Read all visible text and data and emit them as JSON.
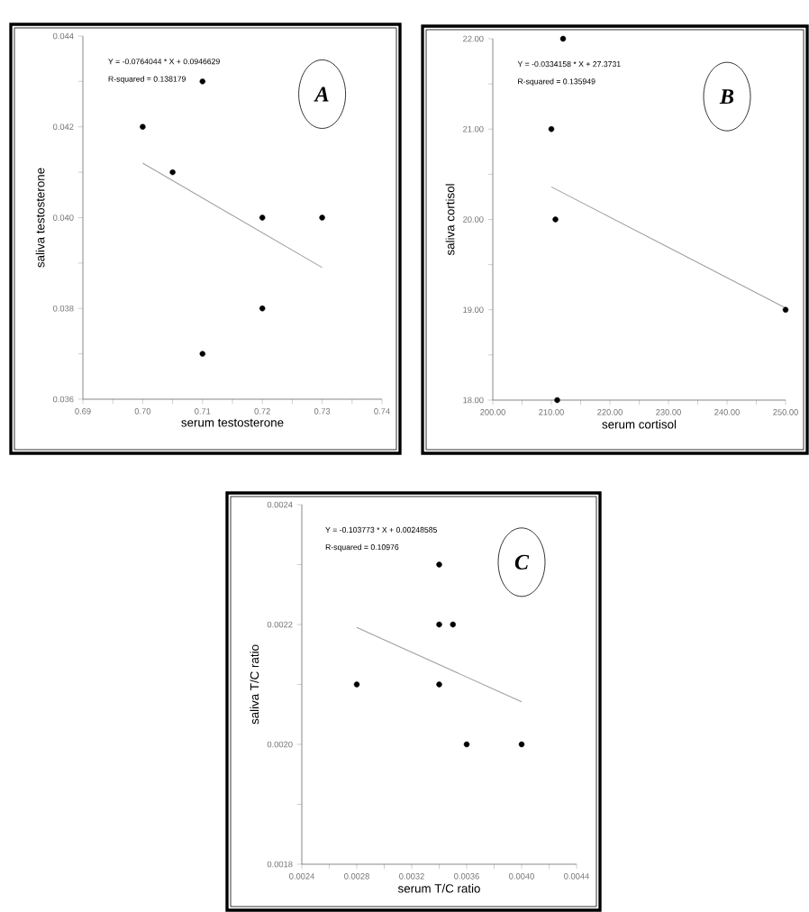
{
  "chart_data": [
    {
      "type": "scatter",
      "xlabel": "serum testosterone",
      "ylabel": "saliva testosterone",
      "xlim": [
        0.69,
        0.74
      ],
      "ylim": [
        0.036,
        0.044
      ],
      "xticks": [
        {
          "value": 0.69,
          "label": "0.69"
        },
        {
          "value": 0.695,
          "label": null
        },
        {
          "value": 0.7,
          "label": "0.70"
        },
        {
          "value": 0.705,
          "label": null
        },
        {
          "value": 0.71,
          "label": "0.71"
        },
        {
          "value": 0.715,
          "label": null
        },
        {
          "value": 0.72,
          "label": "0.72"
        },
        {
          "value": 0.725,
          "label": null
        },
        {
          "value": 0.73,
          "label": "0.73"
        },
        {
          "value": 0.735,
          "label": null
        },
        {
          "value": 0.74,
          "label": "0.74"
        }
      ],
      "yticks": [
        {
          "value": 0.036,
          "label": "0.036"
        },
        {
          "value": 0.037,
          "label": null
        },
        {
          "value": 0.038,
          "label": "0.038"
        },
        {
          "value": 0.039,
          "label": null
        },
        {
          "value": 0.04,
          "label": "0.040"
        },
        {
          "value": 0.041,
          "label": null
        },
        {
          "value": 0.042,
          "label": "0.042"
        },
        {
          "value": 0.043,
          "label": null
        },
        {
          "value": 0.044,
          "label": "0.044"
        }
      ],
      "series": [
        {
          "type": "scatter",
          "color": "#000000",
          "x": [
            0.7,
            0.705,
            0.71,
            0.71,
            0.72,
            0.72,
            0.73
          ],
          "values": [
            0.042,
            0.041,
            0.043,
            0.037,
            0.04,
            0.038,
            0.04
          ]
        },
        {
          "type": "line",
          "color": "#a0a0a0",
          "x": [
            0.7,
            0.73
          ],
          "values": [
            0.0412,
            0.0389
          ]
        }
      ],
      "annotations": [
        "Y = -0.0764044 * X + 0.0946629",
        "R-squared = 0.138179",
        "A"
      ]
    },
    {
      "type": "scatter",
      "xlabel": "serum cortisol",
      "ylabel": "saliva cortisol",
      "xlim": [
        200,
        250
      ],
      "ylim": [
        18,
        22
      ],
      "xticks": [
        {
          "value": 200,
          "label": "200.00"
        },
        {
          "value": 205,
          "label": null
        },
        {
          "value": 210,
          "label": "210.00"
        },
        {
          "value": 215,
          "label": null
        },
        {
          "value": 220,
          "label": "220.00"
        },
        {
          "value": 225,
          "label": null
        },
        {
          "value": 230,
          "label": "230.00"
        },
        {
          "value": 235,
          "label": null
        },
        {
          "value": 240,
          "label": "240.00"
        },
        {
          "value": 245,
          "label": null
        },
        {
          "value": 250,
          "label": "250.00"
        }
      ],
      "yticks": [
        {
          "value": 18,
          "label": "18.00"
        },
        {
          "value": 18.5,
          "label": null
        },
        {
          "value": 19,
          "label": "19.00"
        },
        {
          "value": 19.5,
          "label": null
        },
        {
          "value": 20,
          "label": "20.00"
        },
        {
          "value": 20.5,
          "label": null
        },
        {
          "value": 21,
          "label": "21.00"
        },
        {
          "value": 21.5,
          "label": null
        },
        {
          "value": 22,
          "label": "22.00"
        }
      ],
      "series": [
        {
          "type": "scatter",
          "color": "#000000",
          "x": [
            210,
            210.7,
            212,
            211,
            250
          ],
          "values": [
            21,
            20,
            22,
            18,
            19
          ]
        },
        {
          "type": "line",
          "color": "#a0a0a0",
          "x": [
            210,
            250
          ],
          "values": [
            20.36,
            19.02
          ]
        }
      ],
      "annotations": [
        "Y = -0.0334158 * X + 27.3731",
        "R-squared = 0.135949",
        "B"
      ]
    },
    {
      "type": "scatter",
      "xlabel": "serum T/C ratio",
      "ylabel": "saliva T/C ratio",
      "xlim": [
        0.0024,
        0.0044
      ],
      "ylim": [
        0.0018,
        0.0024
      ],
      "xticks": [
        {
          "value": 0.0024,
          "label": "0.0024"
        },
        {
          "value": 0.0026,
          "label": null
        },
        {
          "value": 0.0028,
          "label": "0.0028"
        },
        {
          "value": 0.003,
          "label": null
        },
        {
          "value": 0.0032,
          "label": "0.0032"
        },
        {
          "value": 0.0034,
          "label": null
        },
        {
          "value": 0.0036,
          "label": "0.0036"
        },
        {
          "value": 0.0038,
          "label": null
        },
        {
          "value": 0.004,
          "label": "0.0040"
        },
        {
          "value": 0.0042,
          "label": null
        },
        {
          "value": 0.0044,
          "label": "0.0044"
        }
      ],
      "yticks": [
        {
          "value": 0.0018,
          "label": "0.0018"
        },
        {
          "value": 0.0019,
          "label": null
        },
        {
          "value": 0.002,
          "label": "0.0020"
        },
        {
          "value": 0.0021,
          "label": null
        },
        {
          "value": 0.0022,
          "label": "0.0022"
        },
        {
          "value": 0.0023,
          "label": null
        },
        {
          "value": 0.0024,
          "label": "0.0024"
        }
      ],
      "series": [
        {
          "type": "scatter",
          "color": "#000000",
          "x": [
            0.0028,
            0.0034,
            0.0034,
            0.0035,
            0.0034,
            0.0036,
            0.004
          ],
          "values": [
            0.0021,
            0.0023,
            0.0022,
            0.0022,
            0.0021,
            0.002,
            0.002
          ]
        },
        {
          "type": "line",
          "color": "#a0a0a0",
          "x": [
            0.0028,
            0.004
          ],
          "values": [
            0.002195,
            0.002071
          ]
        }
      ],
      "annotations": [
        "Y = -0.103773 * X + 0.00248585",
        "R-squared = 0.10976",
        "C"
      ]
    }
  ]
}
